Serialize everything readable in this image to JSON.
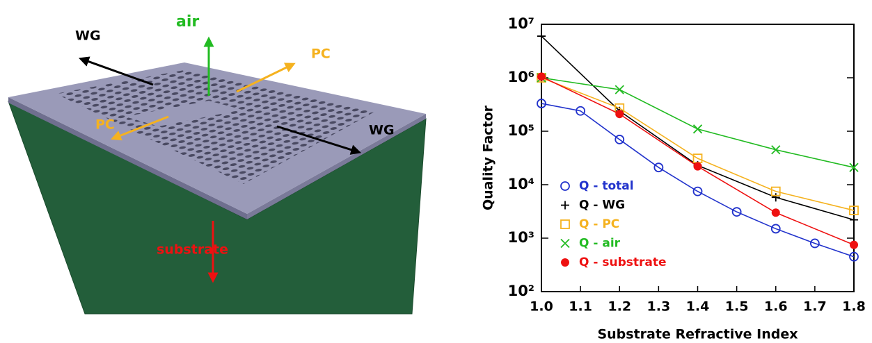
{
  "diagram": {
    "labels": [
      {
        "text": "air",
        "color": "#22bb22"
      },
      {
        "text": "WG",
        "color": "#000000"
      },
      {
        "text": "PC",
        "color": "#f5b21f"
      },
      {
        "text": "PC",
        "color": "#f5b21f"
      },
      {
        "text": "WG",
        "color": "#000000"
      },
      {
        "text": "substrate",
        "color": "#ee1111"
      }
    ]
  },
  "chart_data": {
    "type": "line",
    "xlabel": "Substrate Refractive Index",
    "ylabel": "Quality Factor",
    "xlim": [
      1,
      1.8
    ],
    "xticks": [
      {
        "value": 1,
        "label": "1.0"
      },
      1.1,
      1.2,
      1.3,
      1.4,
      1.5,
      1.6,
      1.7,
      1.8
    ],
    "ylim": [
      100,
      10000000
    ],
    "log_y": true,
    "yticks": [
      {
        "value": 100,
        "label": "10²"
      },
      {
        "value": 1000,
        "label": "10³"
      },
      {
        "value": 10000,
        "label": "10⁴"
      },
      {
        "value": 100000,
        "label": "10⁵"
      },
      {
        "value": 1000000,
        "label": "10⁶"
      },
      {
        "value": 10000000,
        "label": "10⁷"
      }
    ],
    "legend": "lower-left",
    "series": [
      {
        "name": "Q - total",
        "color": "#2233cc",
        "marker": "open-circle",
        "x": [
          1,
          1.1,
          1.2,
          1.3,
          1.4,
          1.5,
          1.6,
          1.7,
          1.8
        ],
        "values": [
          330000,
          240000,
          70000,
          21000,
          7500,
          3100,
          1500,
          800,
          450
        ]
      },
      {
        "name": "Q - WG",
        "color": "#000000",
        "marker": "plus",
        "x": [
          1,
          1.2,
          1.4,
          1.6,
          1.8
        ],
        "values": [
          6000000,
          240000,
          23000,
          5800,
          2200
        ]
      },
      {
        "name": "Q - PC",
        "color": "#f5b21f",
        "marker": "open-square",
        "x": [
          1,
          1.2,
          1.4,
          1.6,
          1.8
        ],
        "values": [
          1000000,
          270000,
          31000,
          7500,
          3300
        ]
      },
      {
        "name": "Q - air",
        "color": "#22bb22",
        "marker": "cross",
        "x": [
          1,
          1.2,
          1.4,
          1.6,
          1.8
        ],
        "values": [
          1000000,
          600000,
          110000,
          45000,
          21000
        ]
      },
      {
        "name": "Q - substrate",
        "color": "#ee1111",
        "marker": "filled-circle",
        "x": [
          1,
          1.2,
          1.4,
          1.6,
          1.8
        ],
        "values": [
          1050000,
          210000,
          22000,
          3000,
          750
        ]
      }
    ]
  }
}
